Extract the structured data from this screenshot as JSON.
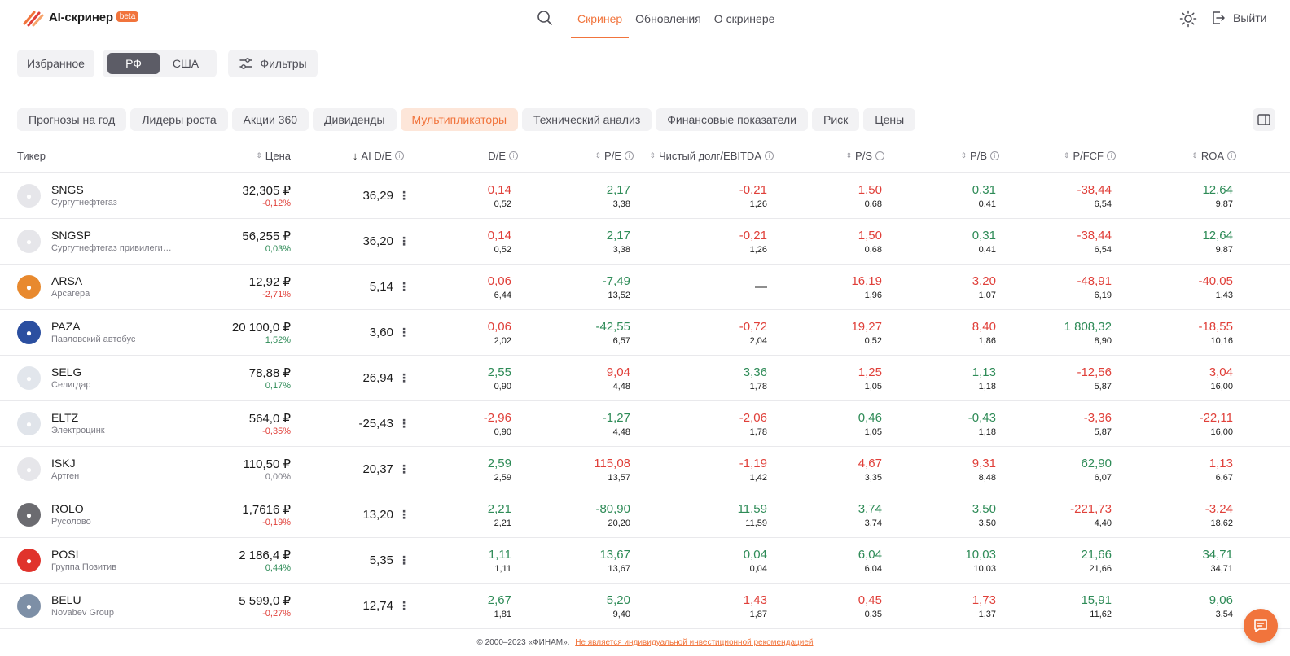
{
  "header": {
    "logo_text": "AI-скринер",
    "beta": "beta",
    "nav": [
      {
        "label": "Скринер",
        "active": true
      },
      {
        "label": "Обновления",
        "active": false
      },
      {
        "label": "О скринере",
        "active": false
      }
    ],
    "logout": "Выйти"
  },
  "toolbar": {
    "favorites": "Избранное",
    "markets": [
      {
        "label": "РФ",
        "active": true
      },
      {
        "label": "США",
        "active": false
      }
    ],
    "filters": "Фильтры"
  },
  "tabs": [
    {
      "label": "Прогнозы на год",
      "active": false
    },
    {
      "label": "Лидеры роста",
      "active": false
    },
    {
      "label": "Акции 360",
      "active": false
    },
    {
      "label": "Дивиденды",
      "active": false
    },
    {
      "label": "Мультипликаторы",
      "active": true
    },
    {
      "label": "Технический анализ",
      "active": false
    },
    {
      "label": "Финансовые показатели",
      "active": false
    },
    {
      "label": "Риск",
      "active": false
    },
    {
      "label": "Цены",
      "active": false
    }
  ],
  "columns": {
    "ticker": "Тикер",
    "price": "Цена",
    "aide": "AI D/E",
    "de": "D/E",
    "pe": "P/E",
    "ndebt": "Чистый долг/EBITDA",
    "ps": "P/S",
    "pb": "P/B",
    "pfcf": "P/FCF",
    "roa": "ROA"
  },
  "rows": [
    {
      "ticker": "SNGS",
      "company": "Сургутнефтегаз",
      "price": "32,305 ₽",
      "change": "-0,12%",
      "change_sign": "neg",
      "aide": "36,29",
      "de": [
        "0,14",
        "0,52",
        "neg"
      ],
      "pe": [
        "2,17",
        "3,38",
        "pos"
      ],
      "ndebt": [
        "-0,21",
        "1,26",
        "neg"
      ],
      "ps": [
        "1,50",
        "0,68",
        "neg"
      ],
      "pb": [
        "0,31",
        "0,41",
        "pos"
      ],
      "pfcf": [
        "-38,44",
        "6,54",
        "neg"
      ],
      "roa": [
        "12,64",
        "9,87",
        "pos"
      ]
    },
    {
      "ticker": "SNGSP",
      "company": "Сургутнефтегаз привилегированные",
      "price": "56,255 ₽",
      "change": "0,03%",
      "change_sign": "pos",
      "aide": "36,20",
      "de": [
        "0,14",
        "0,52",
        "neg"
      ],
      "pe": [
        "2,17",
        "3,38",
        "pos"
      ],
      "ndebt": [
        "-0,21",
        "1,26",
        "neg"
      ],
      "ps": [
        "1,50",
        "0,68",
        "neg"
      ],
      "pb": [
        "0,31",
        "0,41",
        "pos"
      ],
      "pfcf": [
        "-38,44",
        "6,54",
        "neg"
      ],
      "roa": [
        "12,64",
        "9,87",
        "pos"
      ]
    },
    {
      "ticker": "ARSA",
      "company": "Арсагера",
      "price": "12,92 ₽",
      "change": "-2,71%",
      "change_sign": "neg",
      "aide": "5,14",
      "de": [
        "0,06",
        "6,44",
        "neg"
      ],
      "pe": [
        "-7,49",
        "13,52",
        "pos"
      ],
      "ndebt": [
        "—",
        "",
        "dash"
      ],
      "ps": [
        "16,19",
        "1,96",
        "neg"
      ],
      "pb": [
        "3,20",
        "1,07",
        "neg"
      ],
      "pfcf": [
        "-48,91",
        "6,19",
        "neg"
      ],
      "roa": [
        "-40,05",
        "1,43",
        "neg"
      ]
    },
    {
      "ticker": "PAZA",
      "company": "Павловский автобус",
      "price": "20 100,0 ₽",
      "change": "1,52%",
      "change_sign": "pos",
      "aide": "3,60",
      "de": [
        "0,06",
        "2,02",
        "neg"
      ],
      "pe": [
        "-42,55",
        "6,57",
        "pos"
      ],
      "ndebt": [
        "-0,72",
        "2,04",
        "neg"
      ],
      "ps": [
        "19,27",
        "0,52",
        "neg"
      ],
      "pb": [
        "8,40",
        "1,86",
        "neg"
      ],
      "pfcf": [
        "1 808,32",
        "8,90",
        "pos"
      ],
      "roa": [
        "-18,55",
        "10,16",
        "neg"
      ]
    },
    {
      "ticker": "SELG",
      "company": "Селигдар",
      "price": "78,88 ₽",
      "change": "0,17%",
      "change_sign": "pos",
      "aide": "26,94",
      "de": [
        "2,55",
        "0,90",
        "pos"
      ],
      "pe": [
        "9,04",
        "4,48",
        "neg"
      ],
      "ndebt": [
        "3,36",
        "1,78",
        "pos"
      ],
      "ps": [
        "1,25",
        "1,05",
        "neg"
      ],
      "pb": [
        "1,13",
        "1,18",
        "pos"
      ],
      "pfcf": [
        "-12,56",
        "5,87",
        "neg"
      ],
      "roa": [
        "3,04",
        "16,00",
        "neg"
      ]
    },
    {
      "ticker": "ELTZ",
      "company": "Электроцинк",
      "price": "564,0 ₽",
      "change": "-0,35%",
      "change_sign": "neg",
      "aide": "-25,43",
      "de": [
        "-2,96",
        "0,90",
        "neg"
      ],
      "pe": [
        "-1,27",
        "4,48",
        "pos"
      ],
      "ndebt": [
        "-2,06",
        "1,78",
        "neg"
      ],
      "ps": [
        "0,46",
        "1,05",
        "pos"
      ],
      "pb": [
        "-0,43",
        "1,18",
        "pos"
      ],
      "pfcf": [
        "-3,36",
        "5,87",
        "neg"
      ],
      "roa": [
        "-22,11",
        "16,00",
        "neg"
      ]
    },
    {
      "ticker": "ISKJ",
      "company": "Артген",
      "price": "110,50 ₽",
      "change": "0,00%",
      "change_sign": "neu",
      "aide": "20,37",
      "de": [
        "2,59",
        "2,59",
        "pos"
      ],
      "pe": [
        "115,08",
        "13,57",
        "neg"
      ],
      "ndebt": [
        "-1,19",
        "1,42",
        "neg"
      ],
      "ps": [
        "4,67",
        "3,35",
        "neg"
      ],
      "pb": [
        "9,31",
        "8,48",
        "neg"
      ],
      "pfcf": [
        "62,90",
        "6,07",
        "pos"
      ],
      "roa": [
        "1,13",
        "6,67",
        "neg"
      ]
    },
    {
      "ticker": "ROLO",
      "company": "Русолово",
      "price": "1,7616 ₽",
      "change": "-0,19%",
      "change_sign": "neg",
      "aide": "13,20",
      "de": [
        "2,21",
        "2,21",
        "pos"
      ],
      "pe": [
        "-80,90",
        "20,20",
        "pos"
      ],
      "ndebt": [
        "11,59",
        "11,59",
        "pos"
      ],
      "ps": [
        "3,74",
        "3,74",
        "pos"
      ],
      "pb": [
        "3,50",
        "3,50",
        "pos"
      ],
      "pfcf": [
        "-221,73",
        "4,40",
        "neg"
      ],
      "roa": [
        "-3,24",
        "18,62",
        "neg"
      ]
    },
    {
      "ticker": "POSI",
      "company": "Группа Позитив",
      "price": "2 186,4 ₽",
      "change": "0,44%",
      "change_sign": "pos",
      "aide": "5,35",
      "de": [
        "1,11",
        "1,11",
        "pos"
      ],
      "pe": [
        "13,67",
        "13,67",
        "pos"
      ],
      "ndebt": [
        "0,04",
        "0,04",
        "pos"
      ],
      "ps": [
        "6,04",
        "6,04",
        "pos"
      ],
      "pb": [
        "10,03",
        "10,03",
        "pos"
      ],
      "pfcf": [
        "21,66",
        "21,66",
        "pos"
      ],
      "roa": [
        "34,71",
        "34,71",
        "pos"
      ]
    },
    {
      "ticker": "BELU",
      "company": "Novabev Group",
      "price": "5 599,0 ₽",
      "change": "-0,27%",
      "change_sign": "neg",
      "aide": "12,74",
      "de": [
        "2,67",
        "1,81",
        "pos"
      ],
      "pe": [
        "5,20",
        "9,40",
        "pos"
      ],
      "ndebt": [
        "1,43",
        "1,87",
        "neg"
      ],
      "ps": [
        "0,45",
        "0,35",
        "neg"
      ],
      "pb": [
        "1,73",
        "1,37",
        "neg"
      ],
      "pfcf": [
        "15,91",
        "11,62",
        "pos"
      ],
      "roa": [
        "9,06",
        "3,54",
        "pos"
      ]
    }
  ],
  "avatar_colors": [
    "#e6e6ea",
    "#e6e6ea",
    "#e8892e",
    "#2b4fa0",
    "#e2e6ec",
    "#e0e4ea",
    "#e6e6ea",
    "#6b6b70",
    "#e0332c",
    "#7d8fa6"
  ],
  "footer": {
    "copyright": "© 2000–2023 «ФИНАМ».",
    "disclaimer": "Не является индивидуальной инвестиционной рекомендацией"
  },
  "icons": [
    "logo-icon",
    "search-icon",
    "sun-icon",
    "logout-icon",
    "filters-icon",
    "columns-icon",
    "chat-icon"
  ]
}
